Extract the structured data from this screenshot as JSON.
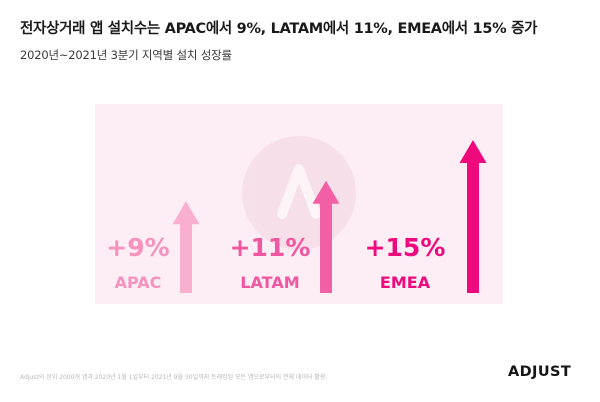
{
  "header": {
    "title": "전자상거래 앱 설치수는 APAC에서 9%, LATAM에서 11%, EMEA에서 15% 증가",
    "subtitle": "2020년~2021년 3분기 지역별 설치 성장률"
  },
  "footer": {
    "note": "Adjust의 상위 2000개 앱과 2020년 1월 1일부터 2021년 9월 30일까지 트래킹된 모든 앱으로부터의 전체 데이터 활용.",
    "logo": "ADJUST"
  },
  "chart_data": {
    "type": "bar",
    "categories": [
      "APAC",
      "LATAM",
      "EMEA"
    ],
    "values": [
      9,
      11,
      15
    ],
    "value_labels": [
      "+9%",
      "+11%",
      "+15%"
    ],
    "title": "전자상거래 앱 설치수는 APAC에서 9%, LATAM에서 11%, EMEA에서 15% 증가",
    "subtitle": "2020년~2021년 3분기 지역별 설치 성장률",
    "unit": "%",
    "colors": [
      "#f9b0d0",
      "#f35fa4",
      "#ee0a7c"
    ],
    "label_colors": [
      "#f592be",
      "#f156a0",
      "#ee0a7c"
    ],
    "background": "#fdeef6",
    "grid": false,
    "legend": "none"
  }
}
